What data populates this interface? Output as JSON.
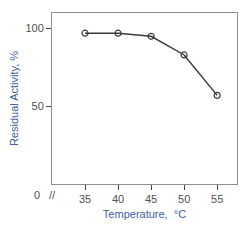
{
  "chart_data": {
    "type": "line",
    "x": [
      35,
      40,
      45,
      50,
      55
    ],
    "values": [
      97,
      97,
      95,
      83,
      57
    ],
    "color": "#3a3a3a",
    "marker": "circle-open",
    "xlabel": "Temperature,  °C",
    "ylabel": "Residual Activity, %",
    "xlim": [
      30,
      58
    ],
    "xticks": [
      35,
      40,
      45,
      50,
      55
    ],
    "ylim": [
      0,
      110
    ],
    "yticks": [
      50,
      100
    ],
    "annotations": [
      "0",
      "//"
    ],
    "grid": false
  }
}
